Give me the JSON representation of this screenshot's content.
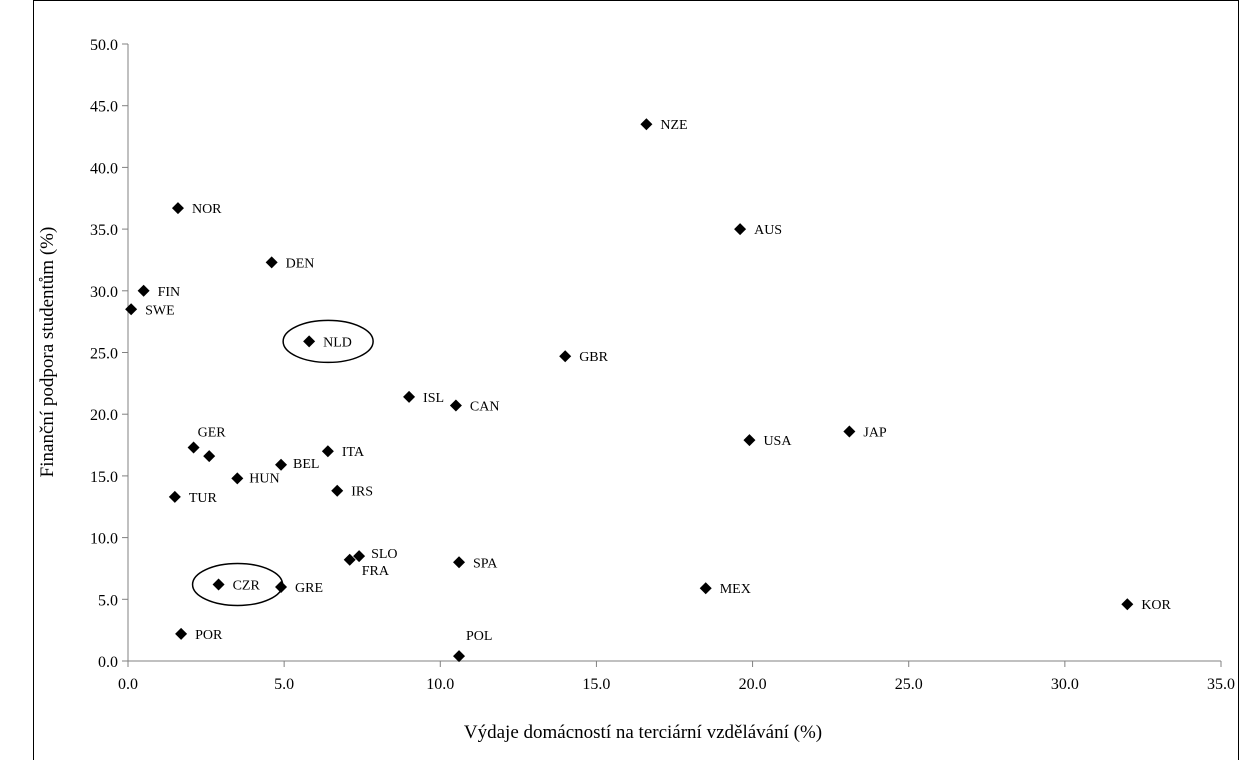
{
  "chart_data": {
    "type": "scatter",
    "title": "",
    "xlabel": "Výdaje domácností na terciární vzdělávání (%)",
    "ylabel": "Finanční podpora studentům (%)",
    "xlim": [
      0,
      35
    ],
    "ylim": [
      0,
      50
    ],
    "xticks": [
      "0.0",
      "5.0",
      "10.0",
      "15.0",
      "20.0",
      "25.0",
      "30.0",
      "35.0"
    ],
    "yticks": [
      "0.0",
      "5.0",
      "10.0",
      "15.0",
      "20.0",
      "25.0",
      "30.0",
      "35.0",
      "40.0",
      "45.0",
      "50.0"
    ],
    "grid": false,
    "legend": "none",
    "marker": "diamond",
    "marker_color": "#000000",
    "highlighted": [
      "NLD",
      "CZR"
    ],
    "points": [
      {
        "label": "NZE",
        "x": 16.6,
        "y": 43.5
      },
      {
        "label": "NOR",
        "x": 1.6,
        "y": 36.7
      },
      {
        "label": "AUS",
        "x": 19.6,
        "y": 35.0
      },
      {
        "label": "DEN",
        "x": 4.6,
        "y": 32.3
      },
      {
        "label": "FIN",
        "x": 0.5,
        "y": 30.0
      },
      {
        "label": "SWE",
        "x": 0.1,
        "y": 28.5
      },
      {
        "label": "NLD",
        "x": 5.8,
        "y": 25.9
      },
      {
        "label": "GBR",
        "x": 14.0,
        "y": 24.7
      },
      {
        "label": "ISL",
        "x": 9.0,
        "y": 21.4
      },
      {
        "label": "CAN",
        "x": 10.5,
        "y": 20.7
      },
      {
        "label": "JAP",
        "x": 23.1,
        "y": 18.6
      },
      {
        "label": "USA",
        "x": 19.9,
        "y": 17.9
      },
      {
        "label": "GER",
        "x": 2.1,
        "y": 17.3
      },
      {
        "label": "",
        "x": 2.6,
        "y": 16.6
      },
      {
        "label": "ITA",
        "x": 6.4,
        "y": 17.0
      },
      {
        "label": "BEL",
        "x": 4.9,
        "y": 15.9
      },
      {
        "label": "HUN",
        "x": 3.5,
        "y": 14.8
      },
      {
        "label": "IRS",
        "x": 6.7,
        "y": 13.8
      },
      {
        "label": "TUR",
        "x": 1.5,
        "y": 13.3
      },
      {
        "label": "SLO",
        "x": 7.4,
        "y": 8.5
      },
      {
        "label": "FRA",
        "x": 7.1,
        "y": 8.2
      },
      {
        "label": "SPA",
        "x": 10.6,
        "y": 8.0
      },
      {
        "label": "CZR",
        "x": 2.9,
        "y": 6.2
      },
      {
        "label": "GRE",
        "x": 4.9,
        "y": 6.0
      },
      {
        "label": "MEX",
        "x": 18.5,
        "y": 5.9
      },
      {
        "label": "KOR",
        "x": 32.0,
        "y": 4.6
      },
      {
        "label": "POR",
        "x": 1.7,
        "y": 2.2
      },
      {
        "label": "POL",
        "x": 10.6,
        "y": 0.4
      }
    ]
  }
}
